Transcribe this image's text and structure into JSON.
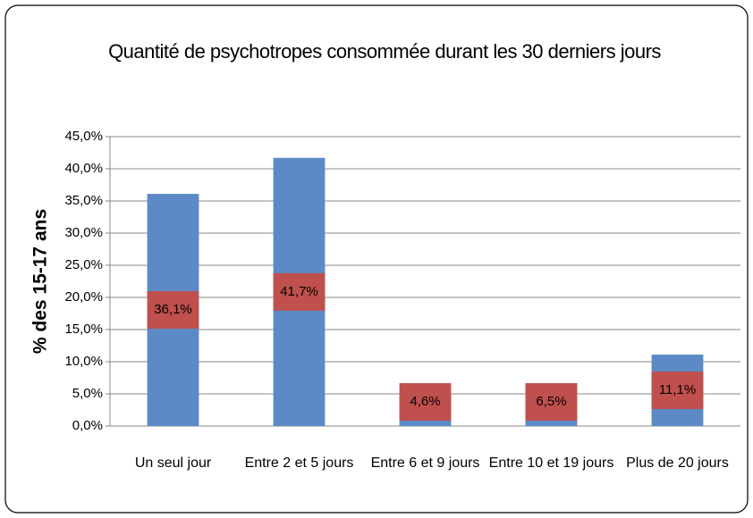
{
  "chart_data": {
    "type": "bar",
    "title": "Quantité de psychotropes consommée durant les 30 derniers jours",
    "y_label": "% des 15-17 ans",
    "categories": [
      "Un seul jour",
      "Entre 2  et 5 jours",
      "Entre 6 et 9 jours",
      "Entre 10 et 19 jours",
      "Plus de 20 jours"
    ],
    "values": [
      36.1,
      41.7,
      4.6,
      6.5,
      11.1
    ],
    "value_labels": [
      "36,1%",
      "41,7%",
      "4,6%",
      "6,5%",
      "11,1%"
    ],
    "color": "#5b8ac6",
    "label_color": "#c0504d",
    "ylim": [
      0,
      45
    ],
    "yticks": [
      {
        "value": 0,
        "label": "0,0%"
      },
      {
        "value": 5,
        "label": "5,0%"
      },
      {
        "value": 10,
        "label": "10,0%"
      },
      {
        "value": 15,
        "label": "15,0%"
      },
      {
        "value": 20,
        "label": "20,0%"
      },
      {
        "value": 25,
        "label": "25,0%"
      },
      {
        "value": 30,
        "label": "30,0%"
      },
      {
        "value": 35,
        "label": "35,0%"
      },
      {
        "value": 40,
        "label": "40,0%"
      },
      {
        "value": 45,
        "label": "45,0%"
      }
    ],
    "grid": true
  }
}
